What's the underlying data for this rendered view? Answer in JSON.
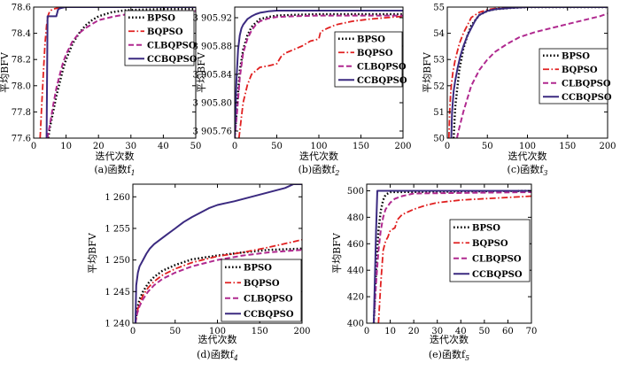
{
  "chart_data": [
    {
      "type": "line",
      "caption": "(a)函数f",
      "caption_sub": "1",
      "ylabel": "平均BFV",
      "xlabel": "迭代次数",
      "xlim": [
        0,
        50
      ],
      "ylim": [
        77.6,
        78.6
      ],
      "xticks": [
        0,
        10,
        20,
        30,
        40,
        50
      ],
      "xtick_labels": [
        "0",
        "10",
        "20",
        "30",
        "40",
        "50"
      ],
      "yticks": [
        77.6,
        77.8,
        78.0,
        78.2,
        78.4,
        78.6
      ],
      "ytick_labels": [
        "77.6",
        "77.8",
        "78.0",
        "78.2",
        "78.4",
        "78.6"
      ],
      "legend_position": "top-right",
      "series": [
        {
          "name": "BPSO",
          "x": [
            4.5,
            5,
            6,
            7,
            8,
            9,
            10,
            11,
            12,
            14,
            16,
            18,
            20,
            24,
            28,
            32,
            40,
            50
          ],
          "y": [
            77.6,
            77.68,
            77.8,
            77.92,
            78.02,
            78.12,
            78.2,
            78.26,
            78.32,
            78.4,
            78.46,
            78.5,
            78.53,
            78.56,
            78.575,
            78.58,
            78.585,
            78.585
          ]
        },
        {
          "name": "BQPSO",
          "x": [
            2,
            2.5,
            3,
            3.5,
            4,
            4.5,
            5,
            6,
            8,
            10,
            15,
            20,
            50
          ],
          "y": [
            77.6,
            77.85,
            78.1,
            78.32,
            78.46,
            78.54,
            78.57,
            78.585,
            78.595,
            78.6,
            78.6,
            78.6,
            78.6
          ]
        },
        {
          "name": "CLBQPSO",
          "x": [
            4.2,
            5,
            6,
            7,
            8,
            9,
            10,
            12,
            14,
            16,
            18,
            20,
            25,
            30,
            35,
            40,
            50
          ],
          "y": [
            77.6,
            77.7,
            77.85,
            77.98,
            78.08,
            78.17,
            78.24,
            78.34,
            78.4,
            78.44,
            78.47,
            78.5,
            78.53,
            78.55,
            78.56,
            78.565,
            78.57
          ]
        },
        {
          "name": "CCBQPSO",
          "x": [
            4,
            4.3,
            5,
            7,
            7.5,
            8,
            9,
            10,
            20,
            50
          ],
          "y": [
            77.6,
            78.53,
            78.53,
            78.53,
            78.58,
            78.59,
            78.595,
            78.6,
            78.6,
            78.6
          ]
        }
      ]
    },
    {
      "type": "line",
      "caption": "(b)函数f",
      "caption_sub": "2",
      "ylabel": "平均BFV",
      "xlabel": "迭代次数",
      "xlim": [
        0,
        200
      ],
      "ylim": [
        3905.75,
        3905.935
      ],
      "xticks": [
        0,
        50,
        100,
        150,
        200
      ],
      "xtick_labels": [
        "0",
        "50",
        "100",
        "150",
        "200"
      ],
      "yticks": [
        3905.76,
        3905.8,
        3905.84,
        3905.88,
        3905.92
      ],
      "ytick_labels": [
        "3 905.76",
        "3 905.80",
        "3 905.84",
        "3 905.88",
        "3 905.92"
      ],
      "legend_position": "top-right",
      "series": [
        {
          "name": "BPSO",
          "x": [
            0,
            3,
            6,
            10,
            15,
            20,
            25,
            30,
            40,
            50,
            70,
            100,
            150,
            200
          ],
          "y": [
            3905.75,
            3905.8,
            3905.845,
            3905.875,
            3905.895,
            3905.907,
            3905.913,
            3905.918,
            3905.921,
            3905.923,
            3905.924,
            3905.925,
            3905.925,
            3905.925
          ]
        },
        {
          "name": "BQPSO",
          "x": [
            5,
            8,
            10,
            15,
            20,
            30,
            40,
            50,
            55,
            60,
            70,
            80,
            90,
            100,
            102,
            110,
            120,
            140,
            160,
            180,
            200
          ],
          "y": [
            3905.75,
            3905.78,
            3905.8,
            3905.825,
            3905.84,
            3905.85,
            3905.852,
            3905.855,
            3905.865,
            3905.87,
            3905.875,
            3905.88,
            3905.887,
            3905.89,
            3905.9,
            3905.905,
            3905.91,
            3905.915,
            3905.918,
            3905.92,
            3905.922
          ]
        },
        {
          "name": "CLBQPSO",
          "x": [
            0,
            3,
            6,
            10,
            15,
            20,
            25,
            30,
            40,
            50,
            70,
            100,
            150,
            200
          ],
          "y": [
            3905.75,
            3905.79,
            3905.835,
            3905.87,
            3905.89,
            3905.902,
            3905.91,
            3905.915,
            3905.919,
            3905.921,
            3905.922,
            3905.923,
            3905.923,
            3905.923
          ]
        },
        {
          "name": "CCBQPSO",
          "x": [
            0,
            2,
            4,
            6,
            8,
            10,
            15,
            20,
            25,
            30,
            35,
            40,
            50,
            100,
            200
          ],
          "y": [
            3905.75,
            3905.83,
            3905.875,
            3905.895,
            3905.905,
            3905.91,
            3905.918,
            3905.922,
            3905.925,
            3905.927,
            3905.928,
            3905.929,
            3905.93,
            3905.93,
            3905.93
          ]
        }
      ]
    },
    {
      "type": "line",
      "caption": "(c)函数f",
      "caption_sub": "3",
      "ylabel": "平均BFV",
      "xlabel": "迭代次数",
      "xlim": [
        0,
        200
      ],
      "ylim": [
        50,
        55
      ],
      "xticks": [
        0,
        50,
        100,
        150,
        200
      ],
      "xtick_labels": [
        "0",
        "50",
        "100",
        "150",
        "200"
      ],
      "yticks": [
        50,
        51,
        52,
        53,
        54,
        55
      ],
      "ytick_labels": [
        "50",
        "51",
        "52",
        "53",
        "54",
        "55"
      ],
      "legend_position": "bottom-right",
      "series": [
        {
          "name": "BPSO",
          "x": [
            8,
            10,
            15,
            20,
            25,
            30,
            35,
            40,
            50,
            60,
            80,
            100,
            150,
            200
          ],
          "y": [
            50,
            51.2,
            52.6,
            53.4,
            53.9,
            54.3,
            54.5,
            54.7,
            54.85,
            54.92,
            54.97,
            55,
            55,
            55
          ]
        },
        {
          "name": "BQPSO",
          "x": [
            2,
            3,
            4,
            5,
            7,
            10,
            15,
            20,
            25,
            30,
            40,
            50,
            60,
            80,
            100,
            150,
            200
          ],
          "y": [
            50,
            51,
            51.6,
            52,
            52.5,
            53,
            53.6,
            54,
            54.3,
            54.6,
            54.8,
            54.9,
            54.95,
            54.98,
            55,
            55,
            55
          ]
        },
        {
          "name": "CLBQPSO",
          "x": [
            12,
            15,
            20,
            25,
            30,
            40,
            50,
            60,
            75,
            90,
            110,
            130,
            150,
            170,
            190,
            200
          ],
          "y": [
            50,
            50.4,
            51,
            51.5,
            52,
            52.6,
            53,
            53.3,
            53.6,
            53.85,
            54.05,
            54.2,
            54.35,
            54.5,
            54.65,
            54.75
          ]
        },
        {
          "name": "CCBQPSO",
          "x": [
            5,
            6,
            8,
            10,
            13,
            16,
            20,
            25,
            30,
            35,
            40,
            50,
            60,
            80,
            100,
            150,
            200
          ],
          "y": [
            50,
            51,
            51.8,
            52.2,
            52.7,
            53.1,
            53.5,
            53.9,
            54.2,
            54.5,
            54.7,
            54.85,
            54.92,
            54.97,
            55,
            55,
            55
          ]
        }
      ]
    },
    {
      "type": "line",
      "caption": "(d)函数f",
      "caption_sub": "4",
      "ylabel": "平均BFV",
      "xlabel": "迭代次数",
      "xlim": [
        0,
        200
      ],
      "ylim": [
        1240,
        1262
      ],
      "xticks": [
        0,
        50,
        100,
        150,
        200
      ],
      "xtick_labels": [
        "0",
        "50",
        "100",
        "150",
        "200"
      ],
      "yticks": [
        1240,
        1245,
        1250,
        1255,
        1260
      ],
      "ytick_labels": [
        "1 240",
        "1 245",
        "1 250",
        "1 255",
        "1 260"
      ],
      "legend_position": "bottom-right",
      "series": [
        {
          "name": "BPSO",
          "x": [
            3,
            5,
            8,
            12,
            18,
            25,
            35,
            50,
            70,
            100,
            130,
            160,
            200
          ],
          "y": [
            1240,
            1242.2,
            1243.8,
            1245,
            1246.3,
            1247.3,
            1248.3,
            1249.2,
            1250.1,
            1250.7,
            1251.2,
            1251.6,
            1251.8
          ]
        },
        {
          "name": "BQPSO",
          "x": [
            3,
            5,
            8,
            12,
            18,
            25,
            35,
            50,
            70,
            100,
            130,
            160,
            200
          ],
          "y": [
            1240,
            1241.8,
            1243.2,
            1244.4,
            1245.6,
            1246.6,
            1247.6,
            1248.6,
            1249.6,
            1250.6,
            1251.2,
            1252,
            1253.2
          ]
        },
        {
          "name": "CLBQPSO",
          "x": [
            3,
            5,
            8,
            12,
            18,
            25,
            35,
            50,
            70,
            100,
            130,
            160,
            200
          ],
          "y": [
            1240,
            1241.5,
            1242.7,
            1243.8,
            1245,
            1246,
            1247,
            1248,
            1249,
            1250,
            1250.7,
            1251.2,
            1251.6
          ]
        },
        {
          "name": "CCBQPSO",
          "x": [
            3,
            4,
            6,
            8,
            12,
            16,
            20,
            25,
            30,
            40,
            50,
            60,
            70,
            80,
            90,
            100,
            120,
            140,
            160,
            180,
            190,
            200
          ],
          "y": [
            1240,
            1246,
            1248,
            1249,
            1250,
            1251,
            1251.8,
            1252.5,
            1253,
            1254,
            1255,
            1256,
            1256.8,
            1257.5,
            1258.2,
            1258.7,
            1259.3,
            1260,
            1260.7,
            1261.4,
            1262,
            1262
          ]
        }
      ]
    },
    {
      "type": "line",
      "caption": "(e)函数f",
      "caption_sub": "5",
      "ylabel": "平均BFV",
      "xlabel": "迭代次数",
      "xlim": [
        0,
        70
      ],
      "ylim": [
        400,
        505
      ],
      "xticks": [
        0,
        10,
        20,
        30,
        40,
        50,
        60,
        70
      ],
      "xtick_labels": [
        "0",
        "10",
        "20",
        "30",
        "40",
        "50",
        "60",
        "70"
      ],
      "yticks": [
        400,
        420,
        440,
        460,
        480,
        500
      ],
      "ytick_labels": [
        "400",
        "420",
        "440",
        "460",
        "480",
        "500"
      ],
      "legend_position": "center-right",
      "series": [
        {
          "name": "BPSO",
          "x": [
            3,
            4,
            5,
            6,
            7,
            8,
            10,
            70
          ],
          "y": [
            400,
            440,
            470,
            485,
            493,
            497,
            499,
            500
          ]
        },
        {
          "name": "BQPSO",
          "x": [
            5,
            6,
            7,
            8,
            9,
            10,
            12,
            13,
            15,
            20,
            25,
            30,
            40,
            50,
            60,
            70
          ],
          "y": [
            400,
            430,
            455,
            462,
            465,
            470,
            472,
            478,
            482,
            486,
            489,
            491,
            493,
            494,
            495,
            496
          ]
        },
        {
          "name": "CLBQPSO",
          "x": [
            3,
            4,
            5,
            6,
            7,
            8,
            10,
            12,
            15,
            20,
            70
          ],
          "y": [
            400,
            430,
            455,
            470,
            480,
            486,
            491,
            494,
            496,
            498,
            499
          ]
        },
        {
          "name": "CCBQPSO",
          "x": [
            3,
            4,
            4.5,
            70
          ],
          "y": [
            400,
            470,
            500,
            500
          ]
        }
      ]
    }
  ],
  "series_styles": [
    {
      "name": "BPSO",
      "color": "#000000",
      "dash": "1.6,2.4",
      "width": 2.4
    },
    {
      "name": "BQPSO",
      "color": "#e02020",
      "dash": "7,2.5,1.6,2.5",
      "width": 1.8
    },
    {
      "name": "CLBQPSO",
      "color": "#b0298f",
      "dash": "6,3",
      "width": 2
    },
    {
      "name": "CCBQPSO",
      "color": "#3b2a80",
      "dash": "",
      "width": 2
    }
  ]
}
